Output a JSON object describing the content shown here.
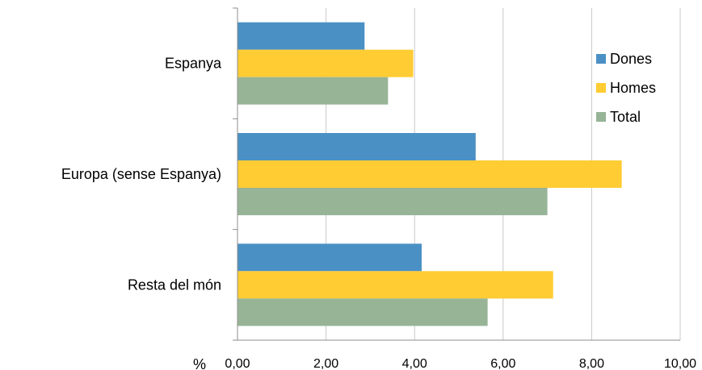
{
  "chart_data": {
    "type": "bar",
    "orientation": "horizontal",
    "categories": [
      "Espanya",
      "Europa (sense Espanya)",
      "Resta del món"
    ],
    "series": [
      {
        "name": "Dones",
        "color": "#4a90c4",
        "values": [
          2.87,
          5.38,
          4.16
        ]
      },
      {
        "name": "Homes",
        "color": "#ffcc33",
        "values": [
          3.97,
          8.68,
          7.13
        ]
      },
      {
        "name": "Total",
        "color": "#97b497",
        "values": [
          3.4,
          7.0,
          5.65
        ]
      }
    ],
    "xlim": [
      0,
      10
    ],
    "xticks": [
      "0,00",
      "2,00",
      "4,00",
      "6,00",
      "8,00",
      "10,00"
    ],
    "xlabel": "%",
    "grid": "vertical",
    "legend": "right"
  }
}
